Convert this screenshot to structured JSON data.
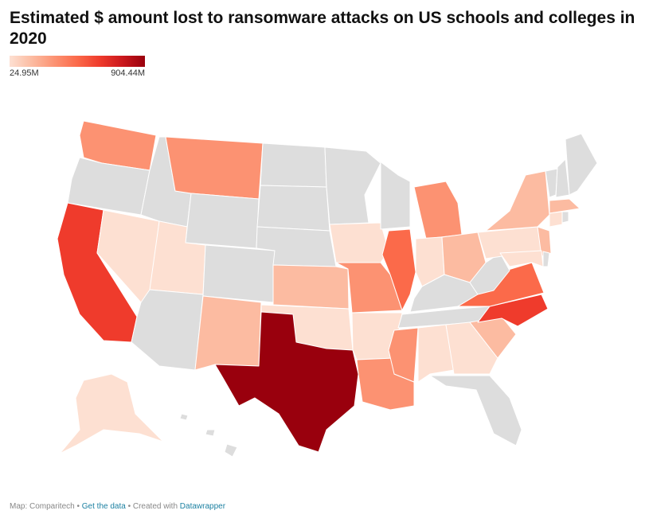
{
  "title": "Estimated $ amount lost to ransomware attacks on US schools and colleges in 2020",
  "legend": {
    "min_label": "24.95M",
    "max_label": "904.44M"
  },
  "colors": {
    "no_data": "#dddddd",
    "scale": [
      "#fde0d2",
      "#fcbba1",
      "#fc9272",
      "#fb6a4a",
      "#ef3b2c",
      "#cb181d",
      "#99000d"
    ]
  },
  "states": [
    {
      "name": "Washington",
      "level": 2
    },
    {
      "name": "Oregon",
      "level": null
    },
    {
      "name": "California",
      "level": 4
    },
    {
      "name": "Nevada",
      "level": 0
    },
    {
      "name": "Idaho",
      "level": null
    },
    {
      "name": "Montana",
      "level": 2
    },
    {
      "name": "Wyoming",
      "level": null
    },
    {
      "name": "Utah",
      "level": 0
    },
    {
      "name": "Arizona",
      "level": null
    },
    {
      "name": "Colorado",
      "level": null
    },
    {
      "name": "New Mexico",
      "level": 1
    },
    {
      "name": "North Dakota",
      "level": null
    },
    {
      "name": "South Dakota",
      "level": null
    },
    {
      "name": "Nebraska",
      "level": null
    },
    {
      "name": "Kansas",
      "level": 1
    },
    {
      "name": "Oklahoma",
      "level": 0
    },
    {
      "name": "Texas",
      "level": 6
    },
    {
      "name": "Minnesota",
      "level": null
    },
    {
      "name": "Iowa",
      "level": 0
    },
    {
      "name": "Missouri",
      "level": 2
    },
    {
      "name": "Arkansas",
      "level": 0
    },
    {
      "name": "Louisiana",
      "level": 2
    },
    {
      "name": "Wisconsin",
      "level": null
    },
    {
      "name": "Illinois",
      "level": 3
    },
    {
      "name": "Michigan",
      "level": 2
    },
    {
      "name": "Indiana",
      "level": 0
    },
    {
      "name": "Ohio",
      "level": 1
    },
    {
      "name": "Kentucky",
      "level": null
    },
    {
      "name": "Tennessee",
      "level": null
    },
    {
      "name": "Mississippi",
      "level": 2
    },
    {
      "name": "Alabama",
      "level": 0
    },
    {
      "name": "Georgia",
      "level": 0
    },
    {
      "name": "Florida",
      "level": null
    },
    {
      "name": "South Carolina",
      "level": 1
    },
    {
      "name": "North Carolina",
      "level": 4
    },
    {
      "name": "Virginia",
      "level": 3
    },
    {
      "name": "West Virginia",
      "level": null
    },
    {
      "name": "Pennsylvania",
      "level": 0
    },
    {
      "name": "New York",
      "level": 1
    },
    {
      "name": "New Jersey",
      "level": 1
    },
    {
      "name": "Maryland",
      "level": 0
    },
    {
      "name": "Delaware",
      "level": null
    },
    {
      "name": "Vermont",
      "level": null
    },
    {
      "name": "New Hampshire",
      "level": null
    },
    {
      "name": "Maine",
      "level": null
    },
    {
      "name": "Massachusetts",
      "level": 1
    },
    {
      "name": "Connecticut",
      "level": 0
    },
    {
      "name": "Rhode Island",
      "level": null
    },
    {
      "name": "Alaska",
      "level": 0
    },
    {
      "name": "Hawaii",
      "level": null
    }
  ],
  "footer": {
    "source": "Map: Comparitech",
    "sep1": " • ",
    "data_link": "Get the data",
    "sep2": " • Created with ",
    "tool_link": "Datawrapper"
  }
}
